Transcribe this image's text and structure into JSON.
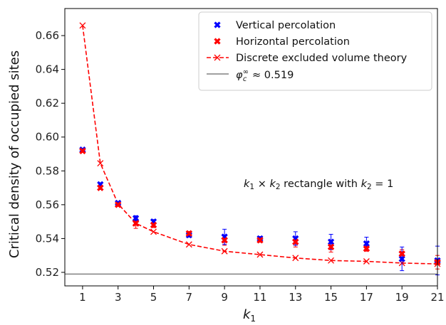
{
  "chart_data": {
    "type": "scatter",
    "xlabel_main": "k",
    "xlabel_sub": "1",
    "ylabel": "Critical density of occupied sites",
    "xlim": [
      0,
      21
    ],
    "ylim": [
      0.512,
      0.676
    ],
    "xticks": [
      1,
      3,
      5,
      7,
      9,
      11,
      13,
      15,
      17,
      19,
      21
    ],
    "yticks": [
      0.52,
      0.54,
      0.56,
      0.58,
      0.6,
      0.62,
      0.64,
      0.66
    ],
    "ytick_labels": [
      "0.52",
      "0.54",
      "0.56",
      "0.58",
      "0.60",
      "0.62",
      "0.64",
      "0.66"
    ],
    "legend_position": "top-right",
    "series": [
      {
        "name": "Vertical percolation",
        "color": "#0000ff",
        "marker": "x-bold",
        "x": [
          1,
          2,
          3,
          4,
          5,
          7,
          9,
          11,
          13,
          15,
          17,
          19,
          21
        ],
        "y": [
          0.5925,
          0.572,
          0.561,
          0.552,
          0.55,
          0.542,
          0.541,
          0.54,
          0.54,
          0.538,
          0.537,
          0.528,
          0.527
        ],
        "err": [
          0.0008,
          0.001,
          0.001,
          0.0015,
          0.0012,
          0.0012,
          0.0045,
          0.0012,
          0.004,
          0.0045,
          0.0038,
          0.007,
          0.0085
        ]
      },
      {
        "name": "Horizontal percolation",
        "color": "#ff0000",
        "marker": "x-bold",
        "x": [
          1,
          2,
          3,
          4,
          5,
          7,
          9,
          11,
          13,
          15,
          17,
          19,
          21
        ],
        "y": [
          0.5918,
          0.57,
          0.56,
          0.549,
          0.548,
          0.543,
          0.539,
          0.539,
          0.538,
          0.535,
          0.534,
          0.531,
          0.526
        ],
        "err": [
          0.0008,
          0.001,
          0.001,
          0.003,
          0.0015,
          0.0012,
          0.003,
          0.0012,
          0.003,
          0.003,
          0.0015,
          0.0025,
          0.004
        ]
      },
      {
        "name": "Discrete excluded volume theory",
        "color": "#ff0000",
        "style": "dashed",
        "marker": "x",
        "x": [
          1,
          2,
          3,
          4,
          5,
          7,
          9,
          11,
          13,
          15,
          17,
          19,
          21
        ],
        "y": [
          0.666,
          0.5845,
          0.5605,
          0.549,
          0.544,
          0.5365,
          0.5325,
          0.5305,
          0.5285,
          0.527,
          0.5265,
          0.5255,
          0.525
        ]
      }
    ],
    "reference_line": {
      "value": 0.519,
      "color": "#808080",
      "legend_label_math": "φ",
      "legend_label_sup": "∞",
      "legend_label_sub": "c",
      "legend_label_rest": " ≈ 0.519"
    },
    "annotation": {
      "parts": [
        "k",
        "1",
        " × ",
        "k",
        "2",
        " rectangle with ",
        "k",
        "2",
        " = 1"
      ]
    }
  }
}
